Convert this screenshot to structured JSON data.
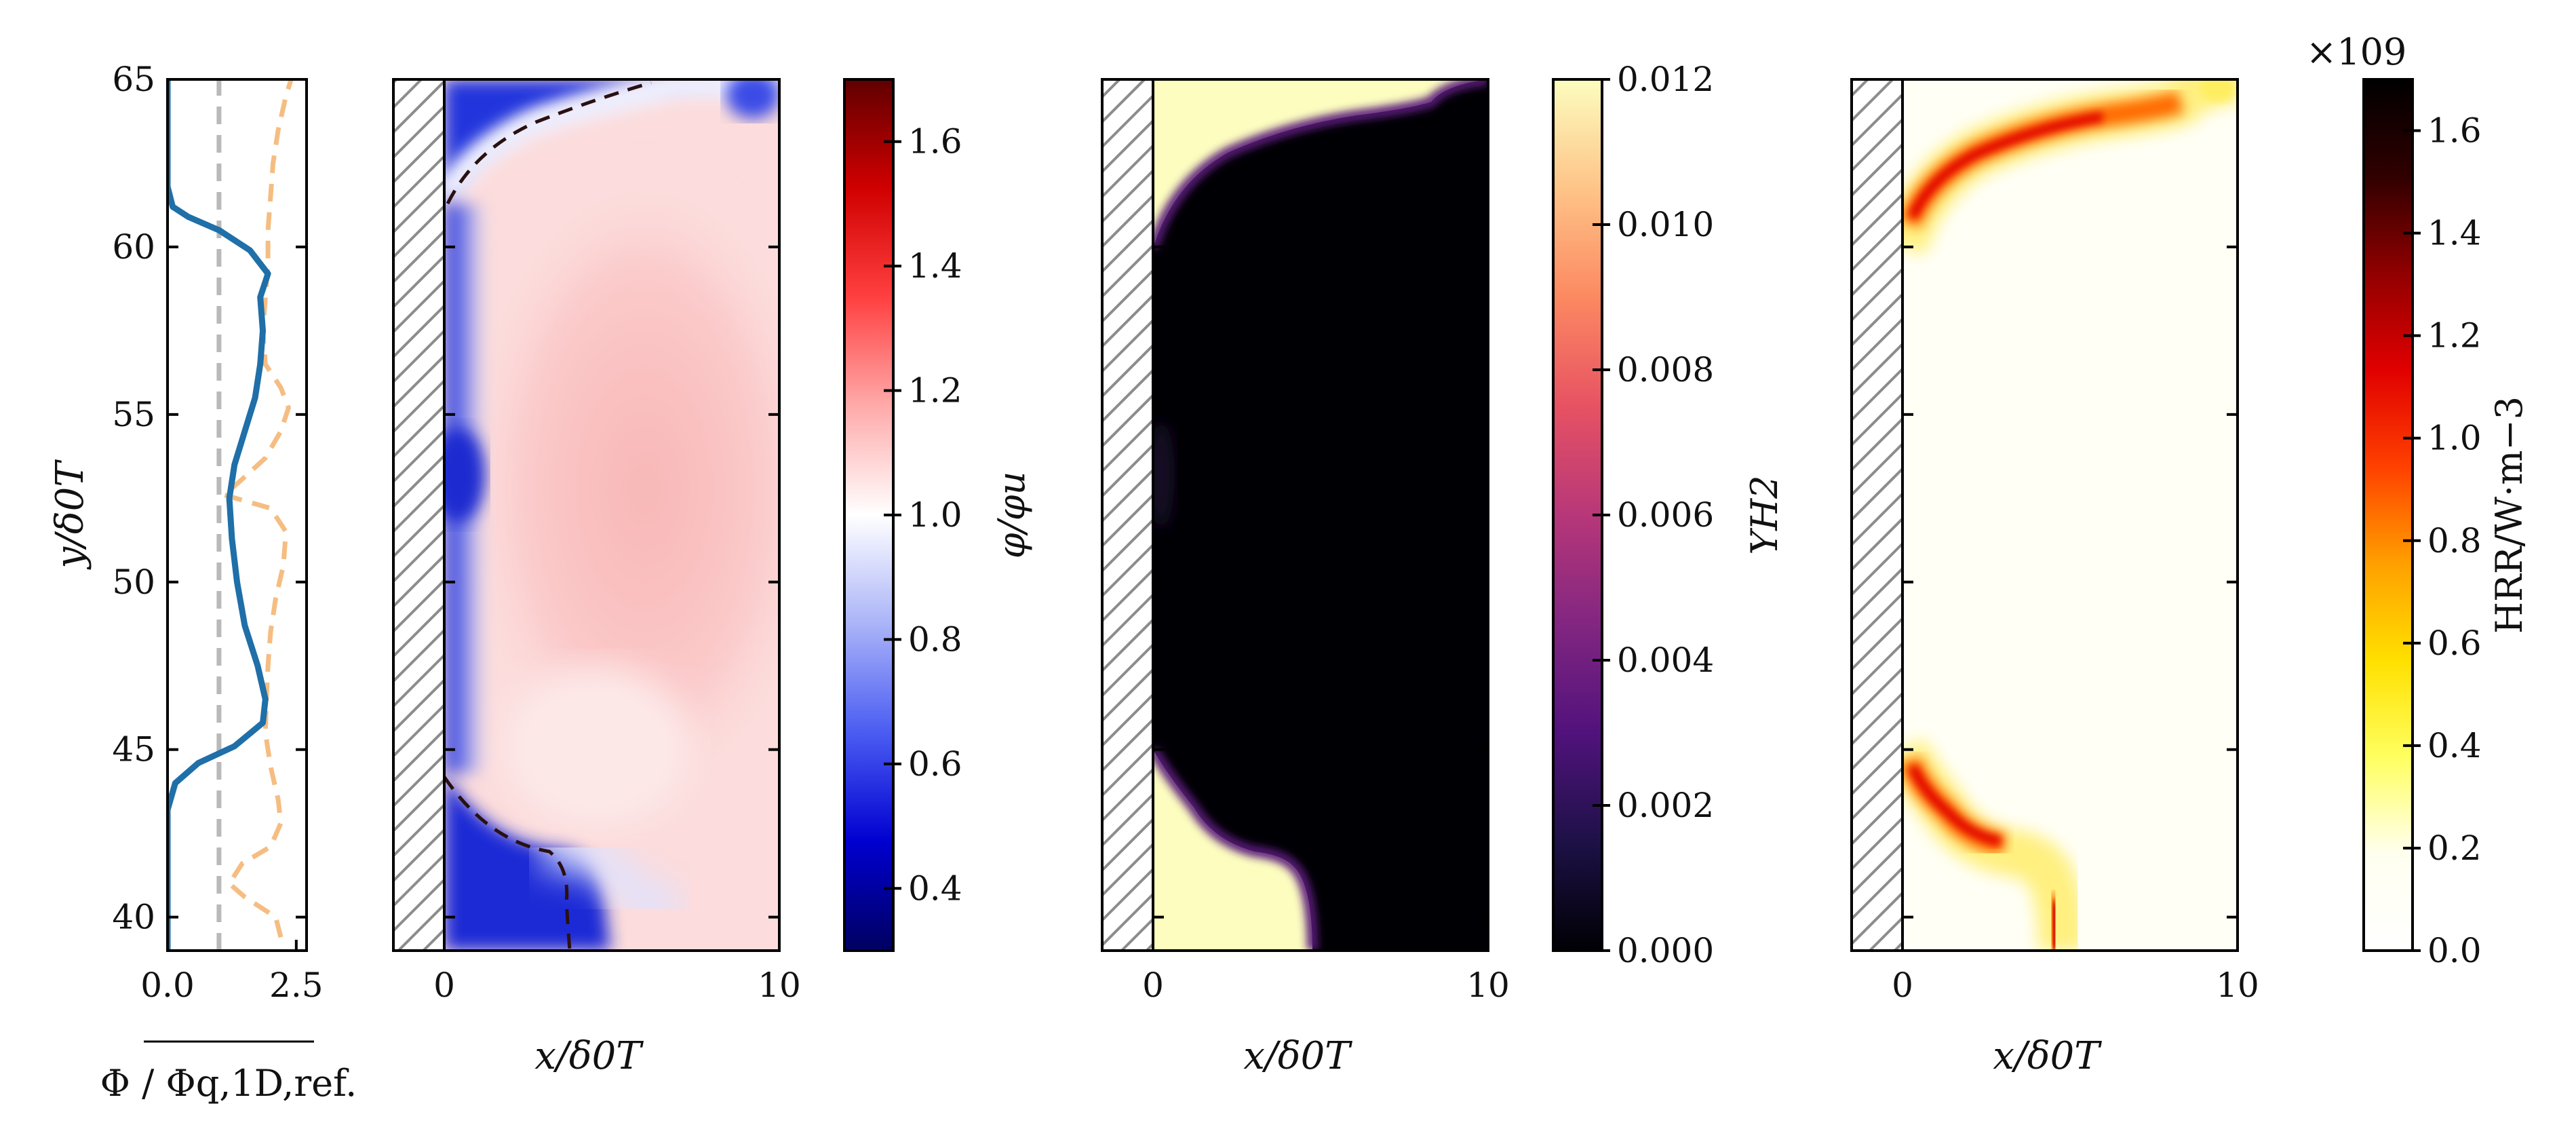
{
  "chart_data": [
    {
      "type": "line",
      "panel": "profile",
      "xlabel": "Φ / Φq,1D,ref.",
      "ylabel": "y/δ0T",
      "xlim": [
        0.0,
        2.7
      ],
      "ylim": [
        39,
        65
      ],
      "xticks": [
        "0.0",
        "2.5"
      ],
      "yticks": [
        "40",
        "45",
        "50",
        "55",
        "60",
        "65"
      ],
      "series": [
        {
          "style": "solid",
          "color": "#1f6fa8",
          "points": [
            [
              0.0,
              39
            ],
            [
              0.0,
              43.2
            ],
            [
              0.15,
              44.0
            ],
            [
              0.6,
              44.6
            ],
            [
              1.3,
              45.1
            ],
            [
              1.85,
              45.8
            ],
            [
              1.9,
              46.5
            ],
            [
              1.75,
              47.5
            ],
            [
              1.5,
              48.7
            ],
            [
              1.35,
              50.0
            ],
            [
              1.25,
              51.3
            ],
            [
              1.2,
              52.5
            ],
            [
              1.3,
              53.5
            ],
            [
              1.5,
              54.5
            ],
            [
              1.7,
              55.5
            ],
            [
              1.8,
              56.5
            ],
            [
              1.85,
              57.5
            ],
            [
              1.8,
              58.5
            ],
            [
              1.95,
              59.2
            ],
            [
              1.6,
              59.9
            ],
            [
              1.0,
              60.5
            ],
            [
              0.4,
              60.9
            ],
            [
              0.1,
              61.2
            ],
            [
              0.0,
              61.8
            ],
            [
              0.0,
              65
            ]
          ]
        },
        {
          "style": "dashed",
          "color": "#f5bd82",
          "points": [
            [
              2.2,
              39.4
            ],
            [
              2.1,
              40.0
            ],
            [
              1.5,
              40.6
            ],
            [
              1.2,
              41.0
            ],
            [
              1.45,
              41.6
            ],
            [
              2.0,
              42.1
            ],
            [
              2.2,
              42.8
            ],
            [
              2.15,
              43.5
            ],
            [
              2.0,
              44.5
            ],
            [
              1.9,
              45.5
            ],
            [
              1.92,
              46.5
            ],
            [
              1.95,
              47.5
            ],
            [
              2.0,
              48.5
            ],
            [
              2.1,
              49.5
            ],
            [
              2.25,
              50.5
            ],
            [
              2.3,
              51.5
            ],
            [
              2.0,
              52.2
            ],
            [
              1.1,
              52.6
            ],
            [
              1.4,
              53.0
            ],
            [
              1.9,
              53.7
            ],
            [
              2.2,
              54.5
            ],
            [
              2.35,
              55.2
            ],
            [
              2.2,
              55.8
            ],
            [
              1.9,
              56.5
            ],
            [
              1.85,
              57.5
            ],
            [
              1.9,
              58.5
            ],
            [
              1.95,
              59.5
            ],
            [
              1.95,
              60.5
            ],
            [
              2.0,
              61.5
            ],
            [
              2.05,
              62.5
            ],
            [
              2.15,
              63.5
            ],
            [
              2.3,
              64.5
            ],
            [
              2.4,
              65
            ]
          ]
        },
        {
          "style": "dashed",
          "color": "#b9b9b9",
          "points": [
            [
              1.0,
              39
            ],
            [
              1.0,
              65
            ]
          ]
        }
      ]
    },
    {
      "type": "heatmap",
      "panel": "equivalence-ratio",
      "xlabel": "x/δ0T",
      "xticks": [
        "0",
        "10"
      ],
      "colorbar": {
        "label": "φ/φu",
        "min": 0.3,
        "max": 1.7,
        "ticks": [
          "0.4",
          "0.6",
          "0.8",
          "1.0",
          "1.2",
          "1.4",
          "1.6"
        ],
        "colors": [
          "#000060",
          "#0000d0",
          "#4a5cf2",
          "#aab4f8",
          "#ffffff",
          "#ffaaaa",
          "#ff4040",
          "#d00000",
          "#600000"
        ]
      }
    },
    {
      "type": "heatmap",
      "panel": "hydrogen-mass-fraction",
      "xlabel": "x/δ0T",
      "xticks": [
        "0",
        "10"
      ],
      "colorbar": {
        "label": "YH2",
        "min": 0.0,
        "max": 0.012,
        "ticks": [
          "0.000",
          "0.002",
          "0.004",
          "0.006",
          "0.008",
          "0.010",
          "0.012"
        ],
        "colors": [
          "#000004",
          "#1d1147",
          "#51127c",
          "#822681",
          "#b73779",
          "#e75263",
          "#fc8961",
          "#fec488",
          "#fcfdbf"
        ]
      }
    },
    {
      "type": "heatmap",
      "panel": "heat-release-rate",
      "xlabel": "x/δ0T",
      "xticks": [
        "0",
        "10"
      ],
      "colorbar": {
        "label": "HRR/W·m−3",
        "multiplier": "×109",
        "min": 0.0,
        "max": 1.7,
        "ticks": [
          "0.0",
          "0.2",
          "0.4",
          "0.6",
          "0.8",
          "1.0",
          "1.2",
          "1.4",
          "1.6"
        ],
        "colors": [
          "#ffffff",
          "#fffff0",
          "#ffff60",
          "#ffe000",
          "#ffa000",
          "#ff4000",
          "#e00000",
          "#900000",
          "#300000",
          "#000000"
        ]
      }
    }
  ]
}
